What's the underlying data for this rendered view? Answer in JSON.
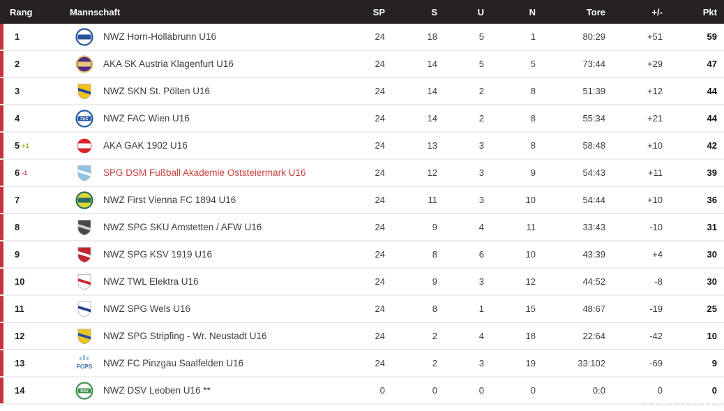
{
  "colors": {
    "header_bg": "#262122",
    "accent_bar": "#c6323d",
    "separator": "#ededed",
    "highlight_team": "#c94040",
    "movement_up": "#8fae1b",
    "movement_down": "#d23c4e"
  },
  "table": {
    "columns": {
      "rank": "Rang",
      "team": "Mannschaft",
      "sp": "SP",
      "s": "S",
      "u": "U",
      "n": "N",
      "tore": "Tore",
      "diff": "+/-",
      "pkt": "Pkt"
    },
    "rows": [
      {
        "rank": "1",
        "movement": null,
        "team": "NWZ Horn-Hollabrunn U16",
        "highlighted": false,
        "crest": {
          "shape": "circle",
          "primary": "#ffffff",
          "secondary": "#27549c",
          "label": ""
        },
        "sp": "24",
        "s": "18",
        "u": "5",
        "n": "1",
        "tore": "80:29",
        "diff": "+51",
        "pkt": "59"
      },
      {
        "rank": "2",
        "movement": null,
        "team": "AKA SK Austria Klagenfurt U16",
        "highlighted": false,
        "crest": {
          "shape": "circle",
          "primary": "#4f2d7f",
          "secondary": "#e6c87a",
          "label": ""
        },
        "sp": "24",
        "s": "14",
        "u": "5",
        "n": "5",
        "tore": "73:44",
        "diff": "+29",
        "pkt": "47"
      },
      {
        "rank": "3",
        "movement": null,
        "team": "NWZ SKN St. Pölten U16",
        "highlighted": false,
        "crest": {
          "shape": "shield",
          "primary": "#f2c21d",
          "secondary": "#24459a",
          "label": ""
        },
        "sp": "24",
        "s": "14",
        "u": "2",
        "n": "8",
        "tore": "51:39",
        "diff": "+12",
        "pkt": "44"
      },
      {
        "rank": "4",
        "movement": null,
        "team": "NWZ FAC Wien U16",
        "highlighted": false,
        "crest": {
          "shape": "circle",
          "primary": "#ffffff",
          "secondary": "#2559a8",
          "label": "FAC"
        },
        "sp": "24",
        "s": "14",
        "u": "2",
        "n": "8",
        "tore": "55:34",
        "diff": "+21",
        "pkt": "44"
      },
      {
        "rank": "5",
        "movement": {
          "text": "+1",
          "dir": "up"
        },
        "team": "AKA GAK 1902 U16",
        "highlighted": false,
        "crest": {
          "shape": "circle",
          "primary": "#d8232a",
          "secondary": "#ffffff",
          "label": ""
        },
        "sp": "24",
        "s": "13",
        "u": "3",
        "n": "8",
        "tore": "58:48",
        "diff": "+10",
        "pkt": "42"
      },
      {
        "rank": "6",
        "movement": {
          "text": "-1",
          "dir": "down"
        },
        "team": "SPG DSM Fußball Akademie Oststeiermark U16",
        "highlighted": true,
        "crest": {
          "shape": "shield",
          "primary": "#8ec3e6",
          "secondary": "#ffffff",
          "label": ""
        },
        "sp": "24",
        "s": "12",
        "u": "3",
        "n": "9",
        "tore": "54:43",
        "diff": "+11",
        "pkt": "39"
      },
      {
        "rank": "7",
        "movement": null,
        "team": "NWZ First Vienna FC 1894 U16",
        "highlighted": false,
        "crest": {
          "shape": "circle",
          "primary": "#ded83a",
          "secondary": "#2e6e62",
          "label": ""
        },
        "sp": "24",
        "s": "11",
        "u": "3",
        "n": "10",
        "tore": "54:44",
        "diff": "+10",
        "pkt": "36"
      },
      {
        "rank": "8",
        "movement": null,
        "team": "NWZ SPG SKU Amstetten / AFW U16",
        "highlighted": false,
        "crest": {
          "shape": "shield",
          "primary": "#47474b",
          "secondary": "#cfcfcf",
          "label": ""
        },
        "sp": "24",
        "s": "9",
        "u": "4",
        "n": "11",
        "tore": "33:43",
        "diff": "-10",
        "pkt": "31"
      },
      {
        "rank": "9",
        "movement": null,
        "team": "NWZ SPG KSV 1919 U16",
        "highlighted": false,
        "crest": {
          "shape": "shield",
          "primary": "#c42430",
          "secondary": "#ffffff",
          "label": ""
        },
        "sp": "24",
        "s": "8",
        "u": "6",
        "n": "10",
        "tore": "43:39",
        "diff": "+4",
        "pkt": "30"
      },
      {
        "rank": "10",
        "movement": null,
        "team": "NWZ TWL Elektra U16",
        "highlighted": false,
        "crest": {
          "shape": "shield",
          "primary": "#ffffff",
          "secondary": "#d0272e",
          "label": ""
        },
        "sp": "24",
        "s": "9",
        "u": "3",
        "n": "12",
        "tore": "44:52",
        "diff": "-8",
        "pkt": "30"
      },
      {
        "rank": "11",
        "movement": null,
        "team": "NWZ SPG Wels U16",
        "highlighted": false,
        "crest": {
          "shape": "shield",
          "primary": "#ffffff",
          "secondary": "#27418f",
          "label": ""
        },
        "sp": "24",
        "s": "8",
        "u": "1",
        "n": "15",
        "tore": "48:67",
        "diff": "-19",
        "pkt": "25"
      },
      {
        "rank": "12",
        "movement": null,
        "team": "NWZ SPG Stripfing - Wr. Neustadt U16",
        "highlighted": false,
        "crest": {
          "shape": "shield",
          "primary": "#e9c71f",
          "secondary": "#2c4a9e",
          "label": ""
        },
        "sp": "24",
        "s": "2",
        "u": "4",
        "n": "18",
        "tore": "22:64",
        "diff": "-42",
        "pkt": "10"
      },
      {
        "rank": "13",
        "movement": null,
        "team": "NWZ FC Pinzgau Saalfelden U16",
        "highlighted": false,
        "crest": {
          "shape": "mark",
          "primary": "#3c6cb4",
          "secondary": "#9ec1e0",
          "label": "FCPS"
        },
        "sp": "24",
        "s": "2",
        "u": "3",
        "n": "19",
        "tore": "33:102",
        "diff": "-69",
        "pkt": "9"
      },
      {
        "rank": "14",
        "movement": null,
        "team": "NWZ DSV Leoben U16 **",
        "highlighted": false,
        "crest": {
          "shape": "circle",
          "primary": "#ffffff",
          "secondary": "#3f9150",
          "label": "DSV"
        },
        "sp": "0",
        "s": "0",
        "u": "0",
        "n": "0",
        "tore": "0:0",
        "diff": "0",
        "pkt": "0"
      }
    ]
  }
}
